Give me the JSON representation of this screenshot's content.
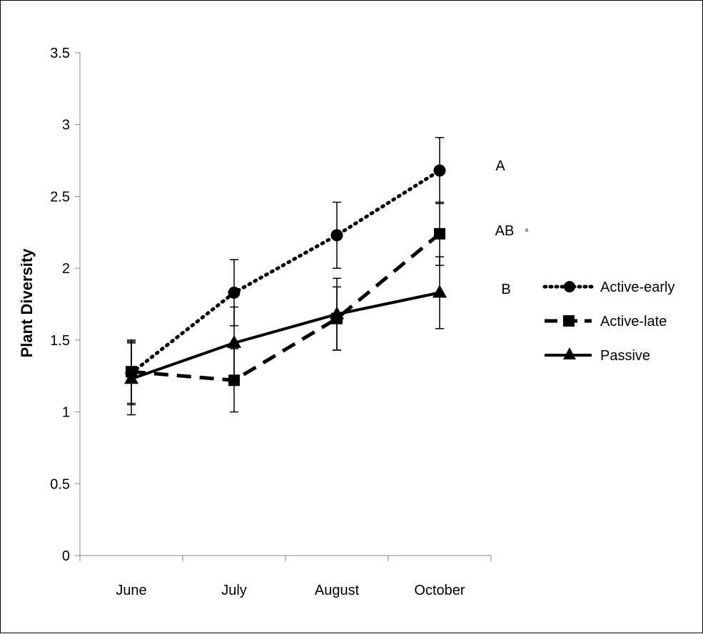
{
  "chart_data": {
    "type": "line",
    "title": "",
    "xlabel": "",
    "ylabel": "Plant Diversity",
    "categories": [
      "June",
      "July",
      "August",
      "October"
    ],
    "ylim": [
      0,
      3.5
    ],
    "yticks": [
      "0",
      "0.5",
      "1",
      "1.5",
      "2",
      "2.5",
      "3",
      "3.5"
    ],
    "grid": false,
    "legend_position": "right",
    "series": [
      {
        "name": "Active-early",
        "values": [
          1.27,
          1.83,
          2.23,
          2.68
        ],
        "errors": [
          0.22,
          0.23,
          0.23,
          0.23
        ],
        "marker": "circle",
        "line_style": "dotted",
        "significance": "A"
      },
      {
        "name": "Active-late",
        "values": [
          1.28,
          1.22,
          1.65,
          2.24
        ],
        "errors": [
          0.22,
          0.22,
          0.22,
          0.22
        ],
        "marker": "square",
        "line_style": "dashed",
        "significance": "AB"
      },
      {
        "name": "Passive",
        "values": [
          1.23,
          1.48,
          1.68,
          1.83
        ],
        "errors": [
          0.25,
          0.25,
          0.25,
          0.25
        ],
        "marker": "triangle",
        "line_style": "solid",
        "significance": "B"
      }
    ],
    "annotations": [
      "A",
      "AB",
      "B",
      "A"
    ]
  }
}
